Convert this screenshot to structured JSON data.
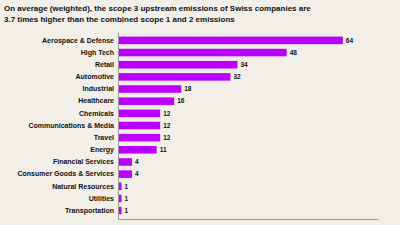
{
  "chart_data": {
    "type": "bar",
    "orientation": "horizontal",
    "title": "On average (weighted), the scope 3 upstream emissions of Swiss companies are",
    "subtitle": "3.7 times higher than the combined scope 1 and 2 emissions",
    "categories": [
      "Aerospace & Defense",
      "High Tech",
      "Retail",
      "Automotive",
      "Industrial",
      "Healthcare",
      "Chemicals",
      "Communications & Media",
      "Travel",
      "Energy",
      "Financial Services",
      "Consumer Goods & Services",
      "Natural Resources",
      "Utilities",
      "Transportation"
    ],
    "values": [
      64,
      48,
      34,
      32,
      18,
      16,
      12,
      12,
      12,
      11,
      4,
      4,
      1,
      1,
      1
    ],
    "color": "#BB00FF",
    "xlim": [
      0,
      74
    ],
    "xticks": [],
    "data_labels": true,
    "tick_labels": "y",
    "grid": false
  }
}
